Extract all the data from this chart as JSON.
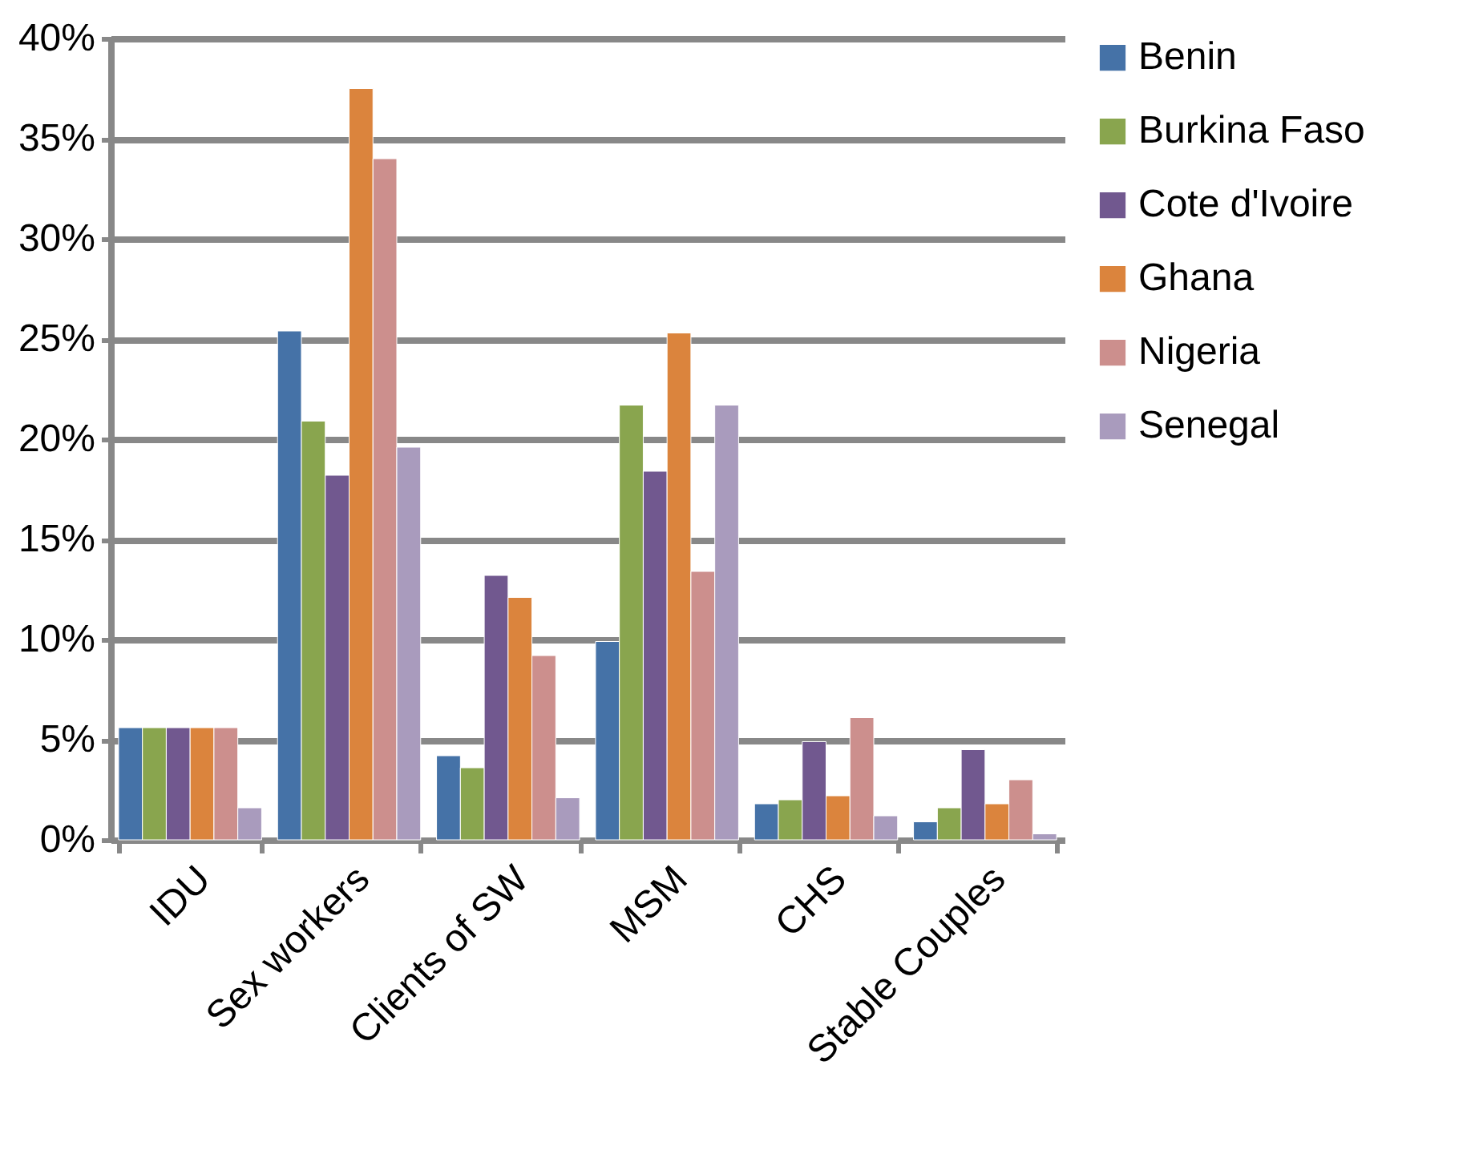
{
  "chart_data": {
    "type": "bar",
    "categories": [
      "IDU",
      "Sex workers",
      "Clients of SW",
      "MSM",
      "CHS",
      "Stable Couples"
    ],
    "series": [
      {
        "name": "Benin",
        "color": "#4572a7",
        "values": [
          5.6,
          25.4,
          4.2,
          9.9,
          1.8,
          0.9
        ]
      },
      {
        "name": "Burkina Faso",
        "color": "#89a54e",
        "values": [
          5.6,
          20.9,
          3.6,
          21.7,
          2.0,
          1.6
        ]
      },
      {
        "name": "Cote d'Ivoire",
        "color": "#71588f",
        "values": [
          5.6,
          18.2,
          13.2,
          18.4,
          4.9,
          4.5
        ]
      },
      {
        "name": "Ghana",
        "color": "#db843d",
        "values": [
          5.6,
          37.5,
          12.1,
          25.3,
          2.2,
          1.8
        ]
      },
      {
        "name": "Nigeria",
        "color": "#cc8f8d",
        "values": [
          5.6,
          34.0,
          9.2,
          13.4,
          6.1,
          3.0
        ]
      },
      {
        "name": "Senegal",
        "color": "#a99bbd",
        "values": [
          1.6,
          19.6,
          2.1,
          21.7,
          1.2,
          0.3
        ]
      }
    ],
    "ylim": [
      0,
      40
    ],
    "yticks": [
      {
        "value": 0,
        "label": "0%"
      },
      {
        "value": 5,
        "label": "5%"
      },
      {
        "value": 10,
        "label": "10%"
      },
      {
        "value": 15,
        "label": "15%"
      },
      {
        "value": 20,
        "label": "20%"
      },
      {
        "value": 25,
        "label": "25%"
      },
      {
        "value": 30,
        "label": "30%"
      },
      {
        "value": 35,
        "label": "35%"
      },
      {
        "value": 40,
        "label": "40%"
      }
    ],
    "grid": "y",
    "legend": "right"
  }
}
